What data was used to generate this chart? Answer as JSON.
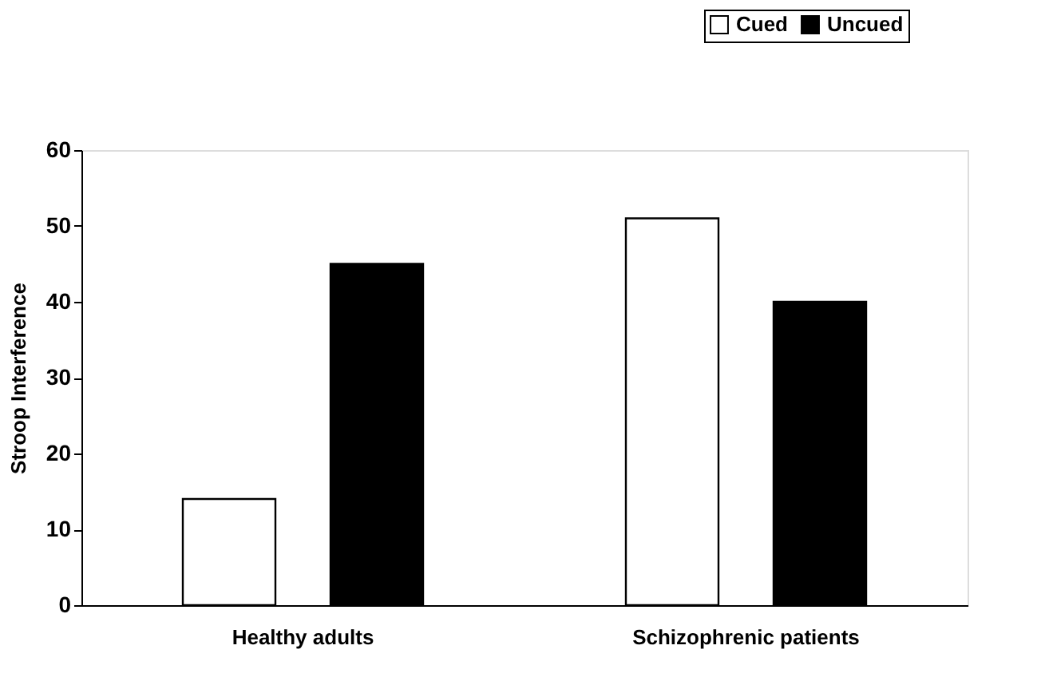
{
  "chart_data": {
    "type": "bar",
    "ylabel": "Stroop Interference",
    "categories": [
      "Healthy adults",
      "Schizophrenic patients"
    ],
    "series": [
      {
        "name": "Cued",
        "color": "#ffffff",
        "values": [
          14,
          51
        ]
      },
      {
        "name": "Uncued",
        "color": "#000000",
        "values": [
          45,
          40
        ]
      }
    ],
    "ylim": [
      0,
      60
    ],
    "yticks": [
      0,
      10,
      20,
      30,
      40,
      50,
      60
    ],
    "grid": false,
    "legend": "top right"
  }
}
